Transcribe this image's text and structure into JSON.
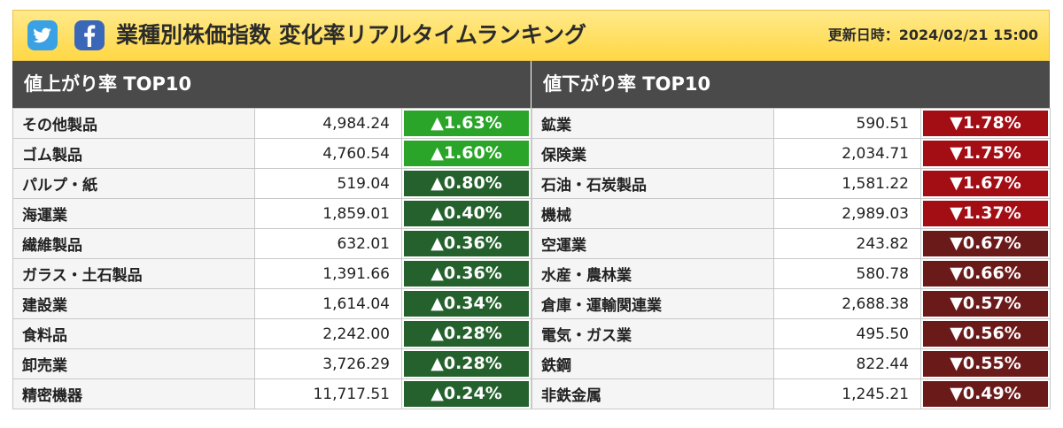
{
  "header": {
    "title": "業種別株価指数 変化率リアルタイムランキング",
    "updated_label": "更新日時：",
    "updated_value": "2024/02/21 15:00"
  },
  "colors": {
    "up_strong": "#2aa52a",
    "up": "#25612d",
    "down_strong": "#a30d14",
    "down": "#6b1a1a"
  },
  "up": {
    "title": "値上がり率 TOP10",
    "rows": [
      {
        "name": "その他製品",
        "price": "4,984.24",
        "change": "▲1.63%"
      },
      {
        "name": "ゴム製品",
        "price": "4,760.54",
        "change": "▲1.60%"
      },
      {
        "name": "パルプ・紙",
        "price": "519.04",
        "change": "▲0.80%"
      },
      {
        "name": "海運業",
        "price": "1,859.01",
        "change": "▲0.40%"
      },
      {
        "name": "繊維製品",
        "price": "632.01",
        "change": "▲0.36%"
      },
      {
        "name": "ガラス・土石製品",
        "price": "1,391.66",
        "change": "▲0.36%"
      },
      {
        "name": "建設業",
        "price": "1,614.04",
        "change": "▲0.34%"
      },
      {
        "name": "食料品",
        "price": "2,242.00",
        "change": "▲0.28%"
      },
      {
        "name": "卸売業",
        "price": "3,726.29",
        "change": "▲0.28%"
      },
      {
        "name": "精密機器",
        "price": "11,717.51",
        "change": "▲0.24%"
      }
    ]
  },
  "down": {
    "title": "値下がり率 TOP10",
    "rows": [
      {
        "name": "鉱業",
        "price": "590.51",
        "change": "▼1.78%"
      },
      {
        "name": "保険業",
        "price": "2,034.71",
        "change": "▼1.75%"
      },
      {
        "name": "石油・石炭製品",
        "price": "1,581.22",
        "change": "▼1.67%"
      },
      {
        "name": "機械",
        "price": "2,989.03",
        "change": "▼1.37%"
      },
      {
        "name": "空運業",
        "price": "243.82",
        "change": "▼0.67%"
      },
      {
        "name": "水産・農林業",
        "price": "580.78",
        "change": "▼0.66%"
      },
      {
        "name": "倉庫・運輸関連業",
        "price": "2,688.38",
        "change": "▼0.57%"
      },
      {
        "name": "電気・ガス業",
        "price": "495.50",
        "change": "▼0.56%"
      },
      {
        "name": "鉄鋼",
        "price": "822.44",
        "change": "▼0.55%"
      },
      {
        "name": "非鉄金属",
        "price": "1,245.21",
        "change": "▼0.49%"
      }
    ]
  }
}
